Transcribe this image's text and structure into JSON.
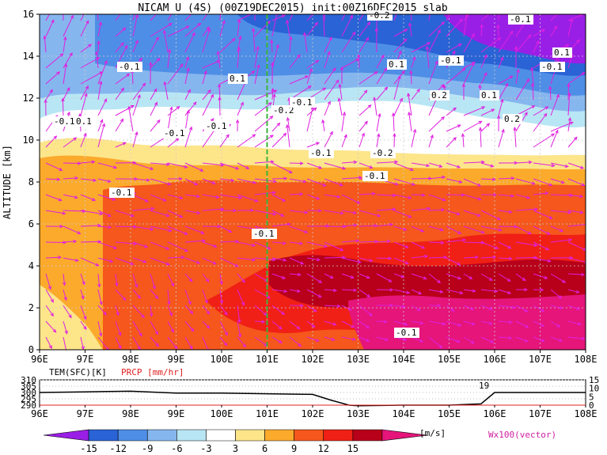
{
  "chart_data": [
    {
      "type": "heatmap",
      "title": "NICAM U (4S) (00Z19DEC2015) init:00Z16DEC2015 slab",
      "ylabel": "ALTITUDE [km]",
      "xlabel": "",
      "x_ticks": [
        "96E",
        "97E",
        "98E",
        "99E",
        "100E",
        "101E",
        "102E",
        "103E",
        "104E",
        "105E",
        "106E",
        "107E",
        "108E"
      ],
      "x_range": [
        96,
        108
      ],
      "y_ticks": [
        "0",
        "2",
        "4",
        "6",
        "8",
        "10",
        "12",
        "14",
        "16"
      ],
      "y_range": [
        0,
        16
      ],
      "grid": true,
      "reference_line_x": 101,
      "color_scale": {
        "unit": "[m/s]",
        "levels": [
          "-15",
          "-12",
          "-9",
          "-6",
          "-3",
          "3",
          "6",
          "9",
          "12",
          "15"
        ],
        "colors": [
          "#9a1fe6",
          "#2a63d6",
          "#4f8ee6",
          "#86b6ee",
          "#b8e6f4",
          "#ffffff",
          "#fde58a",
          "#fbaa2c",
          "#f5571c",
          "#f02016",
          "#b8001a",
          "#e5157a"
        ]
      },
      "contour_labels": [
        "-0.1",
        "-0.1",
        "0.1",
        "-0.1",
        "0.1",
        "-0.1",
        "-0.2",
        "-0.1",
        "-0.1",
        "-0.1",
        "-0.1",
        "0.1",
        "-0.2",
        "-0.1",
        "-0.1",
        "0.2",
        "0.1",
        "0.2",
        "-0.1",
        "0.1",
        "-0.1",
        "-0.2",
        "-0.1"
      ],
      "vector_label": "Wx100(vector)",
      "vector_color": "#e020e0"
    },
    {
      "type": "line",
      "series": [
        {
          "name": "TEM(SFC)[K]",
          "color": "#000000",
          "x": [
            96,
            97,
            98,
            99,
            100,
            101,
            102,
            102.4,
            102.8,
            103,
            104,
            105,
            105.7,
            106,
            107,
            108
          ],
          "values": [
            300,
            300.5,
            301,
            299.5,
            299.5,
            299,
            298.5,
            294,
            290,
            289.5,
            290,
            290,
            291,
            300,
            300,
            300
          ]
        },
        {
          "name": "PRCP [mm/hr]",
          "color": "#e02020",
          "x": [
            96,
            102,
            104,
            106,
            108
          ],
          "values": [
            0,
            0,
            0,
            0,
            0
          ]
        }
      ],
      "left_axis": {
        "label": "TEM(SFC)[K]",
        "ticks": [
          "290",
          "295",
          "300",
          "305",
          "310"
        ],
        "range": [
          290,
          310
        ]
      },
      "right_axis": {
        "label": "PRCP [mm/hr]",
        "ticks": [
          "0",
          "5",
          "10",
          "15"
        ],
        "range": [
          0,
          15
        ]
      },
      "x_ticks": [
        "96E",
        "97E",
        "98E",
        "99E",
        "100E",
        "101E",
        "102E",
        "103E",
        "104E",
        "105E",
        "106E",
        "107E",
        "108E"
      ],
      "x_range": [
        96,
        108
      ],
      "annotation": "19"
    }
  ]
}
